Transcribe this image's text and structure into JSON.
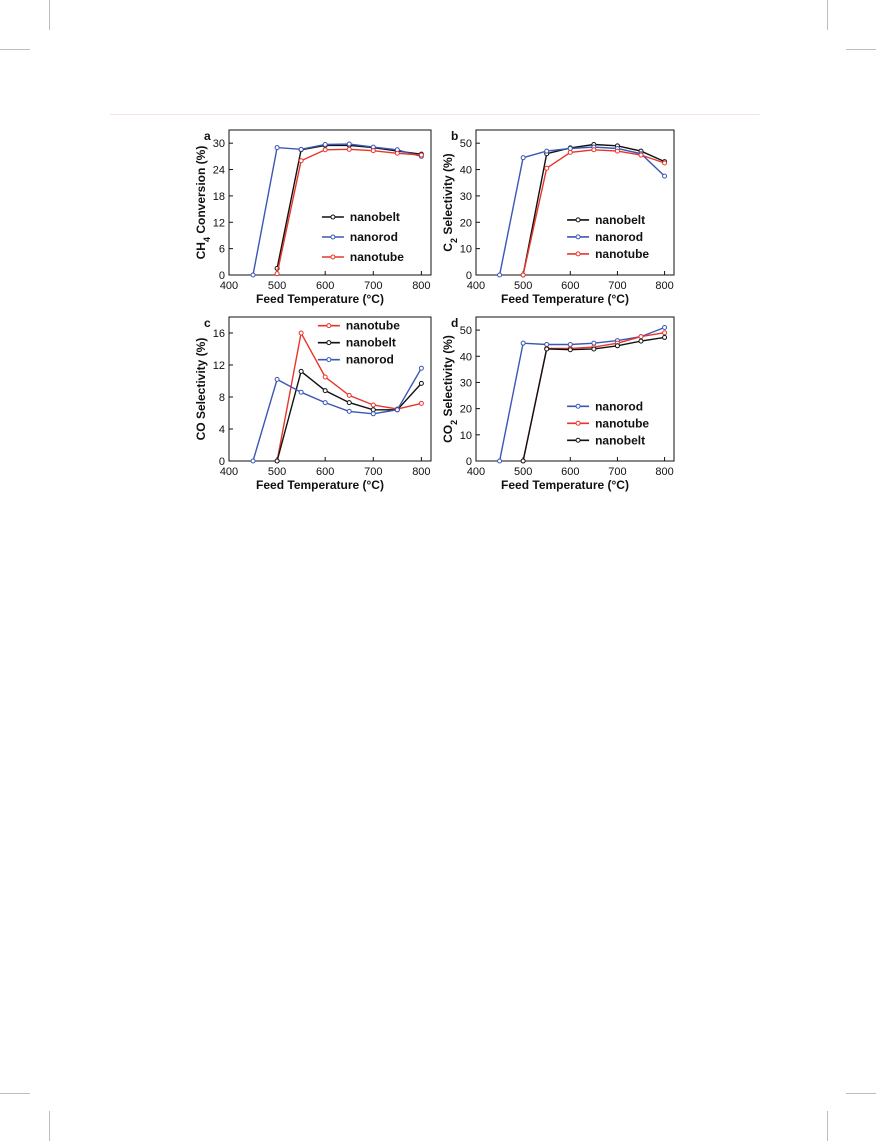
{
  "figure": {
    "units": {
      "temp": "°C"
    }
  },
  "chart_data": [
    {
      "type": "line",
      "panel": "a",
      "xlabel": "Feed Temperature (°C)",
      "ylabel": {
        "prefix": "CH",
        "sub": "4",
        "suffix": " Conversion (%)"
      },
      "xlim": [
        400,
        820
      ],
      "ylim": [
        0,
        33
      ],
      "xticks": [
        400,
        500,
        600,
        700,
        800
      ],
      "yticks": [
        0,
        6,
        12,
        18,
        24,
        30
      ],
      "legend": {
        "position": "center-right"
      },
      "series": [
        {
          "name": "nanobelt",
          "color": "#111111",
          "x": [
            500,
            550,
            600,
            650,
            700,
            750,
            800
          ],
          "y": [
            1.5,
            28.5,
            29.5,
            29.5,
            29.0,
            28.2,
            27.5
          ]
        },
        {
          "name": "nanorod",
          "color": "#3a57b5",
          "x": [
            450,
            500,
            550,
            600,
            650,
            700,
            750,
            800
          ],
          "y": [
            0,
            29.0,
            28.6,
            29.7,
            29.8,
            29.1,
            28.5,
            27.0
          ]
        },
        {
          "name": "nanotube",
          "color": "#e8352b",
          "x": [
            500,
            550,
            600,
            650,
            700,
            750,
            800
          ],
          "y": [
            0.3,
            26.0,
            28.5,
            28.6,
            28.3,
            27.7,
            27.3
          ]
        }
      ]
    },
    {
      "type": "line",
      "panel": "b",
      "xlabel": "Feed Temperature (°C)",
      "ylabel": {
        "prefix": "C",
        "sub": "2",
        "suffix": " Selectivity (%)"
      },
      "xlim": [
        400,
        820
      ],
      "ylim": [
        0,
        55
      ],
      "xticks": [
        400,
        500,
        600,
        700,
        800
      ],
      "yticks": [
        0,
        10,
        20,
        30,
        40,
        50
      ],
      "legend": {
        "position": "bottom-right"
      },
      "series": [
        {
          "name": "nanobelt",
          "color": "#111111",
          "x": [
            500,
            550,
            600,
            650,
            700,
            750,
            800
          ],
          "y": [
            0,
            46.0,
            48.2,
            49.5,
            49.0,
            47.0,
            43.0
          ]
        },
        {
          "name": "nanorod",
          "color": "#3a57b5",
          "x": [
            450,
            500,
            550,
            600,
            650,
            700,
            750,
            800
          ],
          "y": [
            0,
            44.5,
            47.0,
            48.0,
            48.5,
            48.0,
            46.0,
            37.5
          ]
        },
        {
          "name": "nanotube",
          "color": "#e8352b",
          "x": [
            500,
            550,
            600,
            650,
            700,
            750,
            800
          ],
          "y": [
            0,
            40.5,
            46.5,
            47.5,
            47.0,
            45.5,
            42.5
          ]
        }
      ]
    },
    {
      "type": "line",
      "panel": "c",
      "xlabel": "Feed Temperature (°C)",
      "ylabel": {
        "prefix": "CO Selectivity (%)",
        "sub": "",
        "suffix": ""
      },
      "xlim": [
        400,
        820
      ],
      "ylim": [
        0,
        18
      ],
      "xticks": [
        400,
        500,
        600,
        700,
        800
      ],
      "yticks": [
        0,
        4,
        8,
        12,
        16
      ],
      "legend": {
        "position": "top-right"
      },
      "series": [
        {
          "name": "nanotube",
          "color": "#e8352b",
          "x": [
            500,
            550,
            600,
            650,
            700,
            750,
            800
          ],
          "y": [
            0,
            16.0,
            10.5,
            8.2,
            7.0,
            6.5,
            7.2
          ]
        },
        {
          "name": "nanobelt",
          "color": "#111111",
          "x": [
            500,
            550,
            600,
            650,
            700,
            750,
            800
          ],
          "y": [
            0,
            11.2,
            8.8,
            7.3,
            6.4,
            6.4,
            9.7
          ]
        },
        {
          "name": "nanorod",
          "color": "#3a57b5",
          "x": [
            450,
            500,
            550,
            600,
            650,
            700,
            750,
            800
          ],
          "y": [
            0,
            10.2,
            8.6,
            7.3,
            6.2,
            5.9,
            6.4,
            11.6
          ]
        }
      ]
    },
    {
      "type": "line",
      "panel": "d",
      "xlabel": "Feed Temperature (°C)",
      "ylabel": {
        "prefix": "CO",
        "sub": "2",
        "suffix": " Selectivity (%)"
      },
      "xlim": [
        400,
        820
      ],
      "ylim": [
        0,
        55
      ],
      "xticks": [
        400,
        500,
        600,
        700,
        800
      ],
      "yticks": [
        0,
        10,
        20,
        30,
        40,
        50
      ],
      "legend": {
        "position": "bottom-right"
      },
      "series": [
        {
          "name": "nanorod",
          "color": "#3a57b5",
          "x": [
            450,
            500,
            550,
            600,
            650,
            700,
            750,
            800
          ],
          "y": [
            0,
            45.0,
            44.5,
            44.5,
            45.0,
            46.0,
            47.5,
            51.0
          ]
        },
        {
          "name": "nanotube",
          "color": "#e8352b",
          "x": [
            500,
            550,
            600,
            650,
            700,
            750,
            800
          ],
          "y": [
            0,
            43.0,
            43.0,
            43.5,
            45.0,
            47.5,
            49.0
          ]
        },
        {
          "name": "nanobelt",
          "color": "#111111",
          "x": [
            500,
            550,
            600,
            650,
            700,
            750,
            800
          ],
          "y": [
            0,
            42.8,
            42.5,
            42.8,
            44.0,
            45.8,
            47.2
          ]
        }
      ]
    }
  ]
}
